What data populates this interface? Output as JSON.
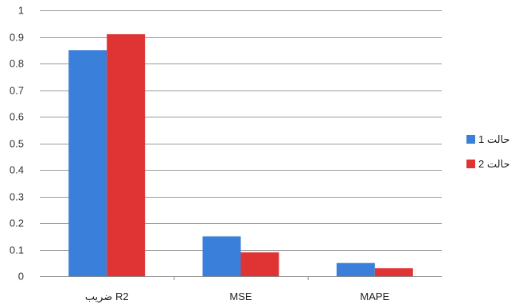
{
  "chart_data": {
    "type": "bar",
    "title": "",
    "xlabel": "",
    "ylabel": "",
    "categories": [
      "ضریب R2",
      "MSE",
      "MAPE"
    ],
    "series": [
      {
        "name": "حالت 1",
        "values": [
          0.85,
          0.15,
          0.05
        ],
        "color": "#3a7fd9"
      },
      {
        "name": "حالت 2",
        "values": [
          0.91,
          0.09,
          0.03
        ],
        "color": "#e03434"
      }
    ],
    "ylim": [
      0,
      1
    ],
    "yticks": [
      "0",
      "0.1",
      "0.2",
      "0.3",
      "0.4",
      "0.5",
      "0.6",
      "0.7",
      "0.8",
      "0.9",
      "1"
    ],
    "grid": true,
    "legend_position": "right"
  }
}
